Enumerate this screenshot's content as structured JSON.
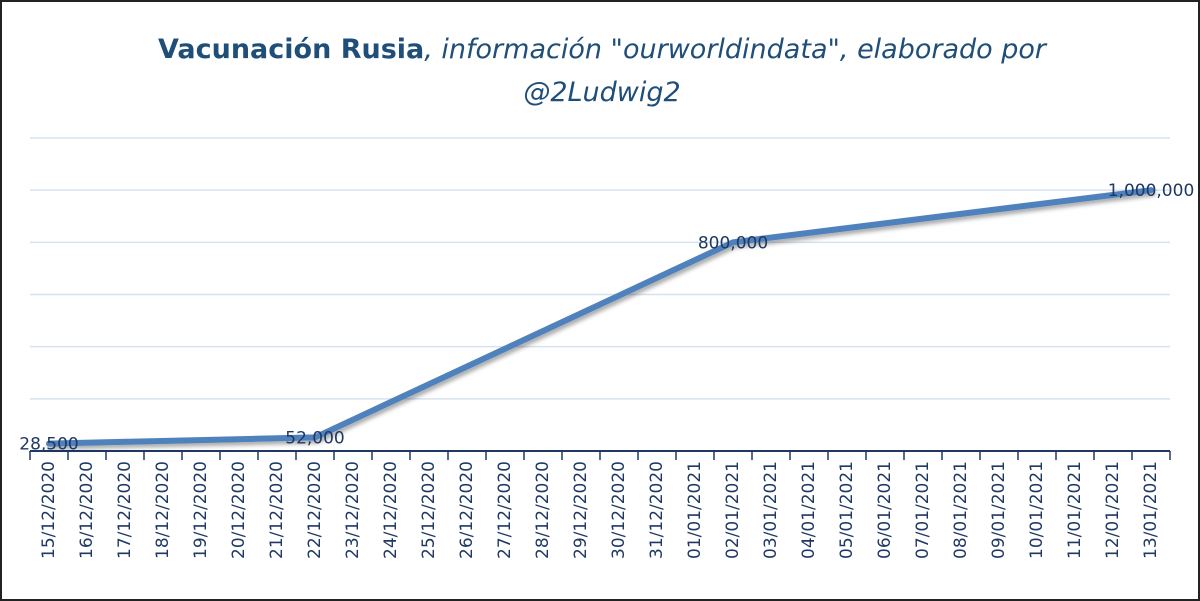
{
  "chart_data": {
    "type": "line",
    "title": "Vacunación Rusia",
    "subtitle": ", información \"ourworldindata\", elaborado por @2Ludwig2",
    "categories": [
      "15/12/2020",
      "16/12/2020",
      "17/12/2020",
      "18/12/2020",
      "19/12/2020",
      "20/12/2020",
      "21/12/2020",
      "22/12/2020",
      "23/12/2020",
      "24/12/2020",
      "25/12/2020",
      "26/12/2020",
      "27/12/2020",
      "28/12/2020",
      "29/12/2020",
      "30/12/2020",
      "31/12/2020",
      "01/01/2021",
      "02/01/2021",
      "03/01/2021",
      "04/01/2021",
      "05/01/2021",
      "06/01/2021",
      "07/01/2021",
      "08/01/2021",
      "09/01/2021",
      "10/01/2021",
      "11/01/2021",
      "12/01/2021",
      "13/01/2021"
    ],
    "x": [
      "15/12/2020",
      "22/12/2020",
      "02/01/2021",
      "13/01/2021"
    ],
    "values": [
      28500,
      52000,
      800000,
      1000000
    ],
    "value_labels": [
      "28,500",
      "52,000",
      "800,000",
      "1,000,000"
    ],
    "color": "#4f81bd",
    "ylim": [
      0,
      1200000
    ],
    "yticks": [
      0,
      200000,
      400000,
      600000,
      800000,
      1000000,
      1200000
    ],
    "ytick_labels_shown": false,
    "grid": true
  }
}
